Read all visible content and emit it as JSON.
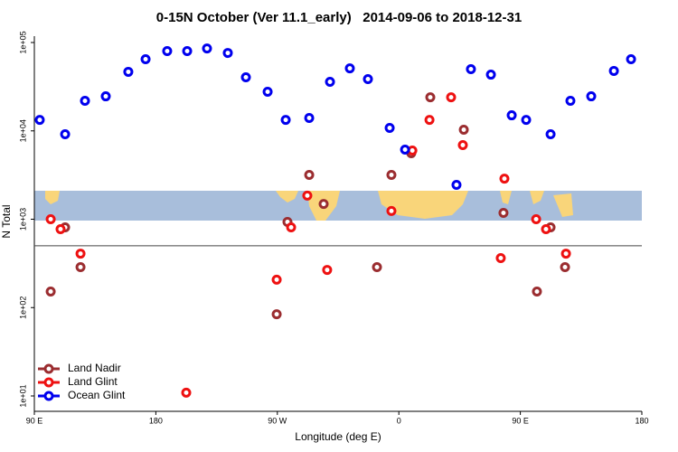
{
  "chart_data": {
    "type": "scatter",
    "title": "0-15N October (Ver 11.1_early)   2014-09-06 to 2018-12-31",
    "xlabel": "Longitude (deg E)",
    "ylabel": "N Total",
    "xlim": [
      90,
      540
    ],
    "xticks": [
      {
        "value": 90,
        "label": "90 E"
      },
      180,
      {
        "value": 270,
        "label": "90 W"
      },
      {
        "value": 360,
        "label": "0"
      },
      {
        "value": 450,
        "label": "90 E"
      },
      {
        "value": 540,
        "label": "180"
      }
    ],
    "ylim": [
      6.7,
      118000
    ],
    "log_y": true,
    "yticks": [
      {
        "value": 10,
        "label": "1e+01"
      },
      {
        "value": 100,
        "label": "1e+02"
      },
      {
        "value": 1000,
        "label": "1e+03"
      },
      {
        "value": 10000,
        "label": "1e+04"
      },
      {
        "value": 100000,
        "label": "1e+05"
      }
    ],
    "reference_line": 500,
    "legend": "lower left",
    "series": [
      {
        "name": "Land Nadir",
        "color": "#9b2d30",
        "x": [
          102.1,
          112.8,
          124.2,
          277.5,
          269.5,
          293.6,
          304.3,
          343.8,
          354.5,
          369.2,
          383.3,
          408.1,
          437.5,
          462.3,
          472.4,
          483.1
        ],
        "values": [
          152,
          809,
          287,
          931,
          84,
          3170,
          1490,
          287,
          3170,
          5580,
          24000,
          10300,
          1180,
          152,
          809,
          287
        ]
      },
      {
        "name": "Land Glint",
        "color": "#ee1111",
        "x": [
          102.1,
          109.4,
          124.2,
          202.5,
          269.5,
          280.2,
          292.2,
          306.9,
          354.5,
          370.0,
          382.7,
          398.7,
          407.4,
          438.2,
          435.5,
          461.7,
          469.0,
          483.8
        ],
        "values": [
          1000,
          772,
          408,
          10.9,
          207,
          809,
          1850,
          267,
          1240,
          5990,
          13300,
          24000,
          6900,
          2880,
          363,
          1000,
          772,
          408
        ]
      },
      {
        "name": "Ocean Glint",
        "color": "#0000ee",
        "x": [
          94.0,
          112.8,
          127.5,
          142.9,
          159.6,
          172.4,
          188.4,
          203.2,
          217.9,
          233.3,
          246.7,
          262.8,
          276.2,
          293.6,
          309.0,
          323.7,
          337.1,
          353.2,
          364.6,
          402.7,
          413.4,
          428.2,
          443.6,
          454.3,
          472.4,
          487.1,
          502.5,
          519.3,
          532.0
        ],
        "values": [
          13300,
          9150,
          21900,
          24600,
          46600,
          64700,
          80000,
          80000,
          85700,
          76200,
          40400,
          27700,
          13300,
          14000,
          35900,
          51000,
          38500,
          10800,
          6140,
          2450,
          49900,
          43300,
          15000,
          13300,
          9150,
          21900,
          24600,
          47700,
          64700
        ]
      }
    ]
  }
}
